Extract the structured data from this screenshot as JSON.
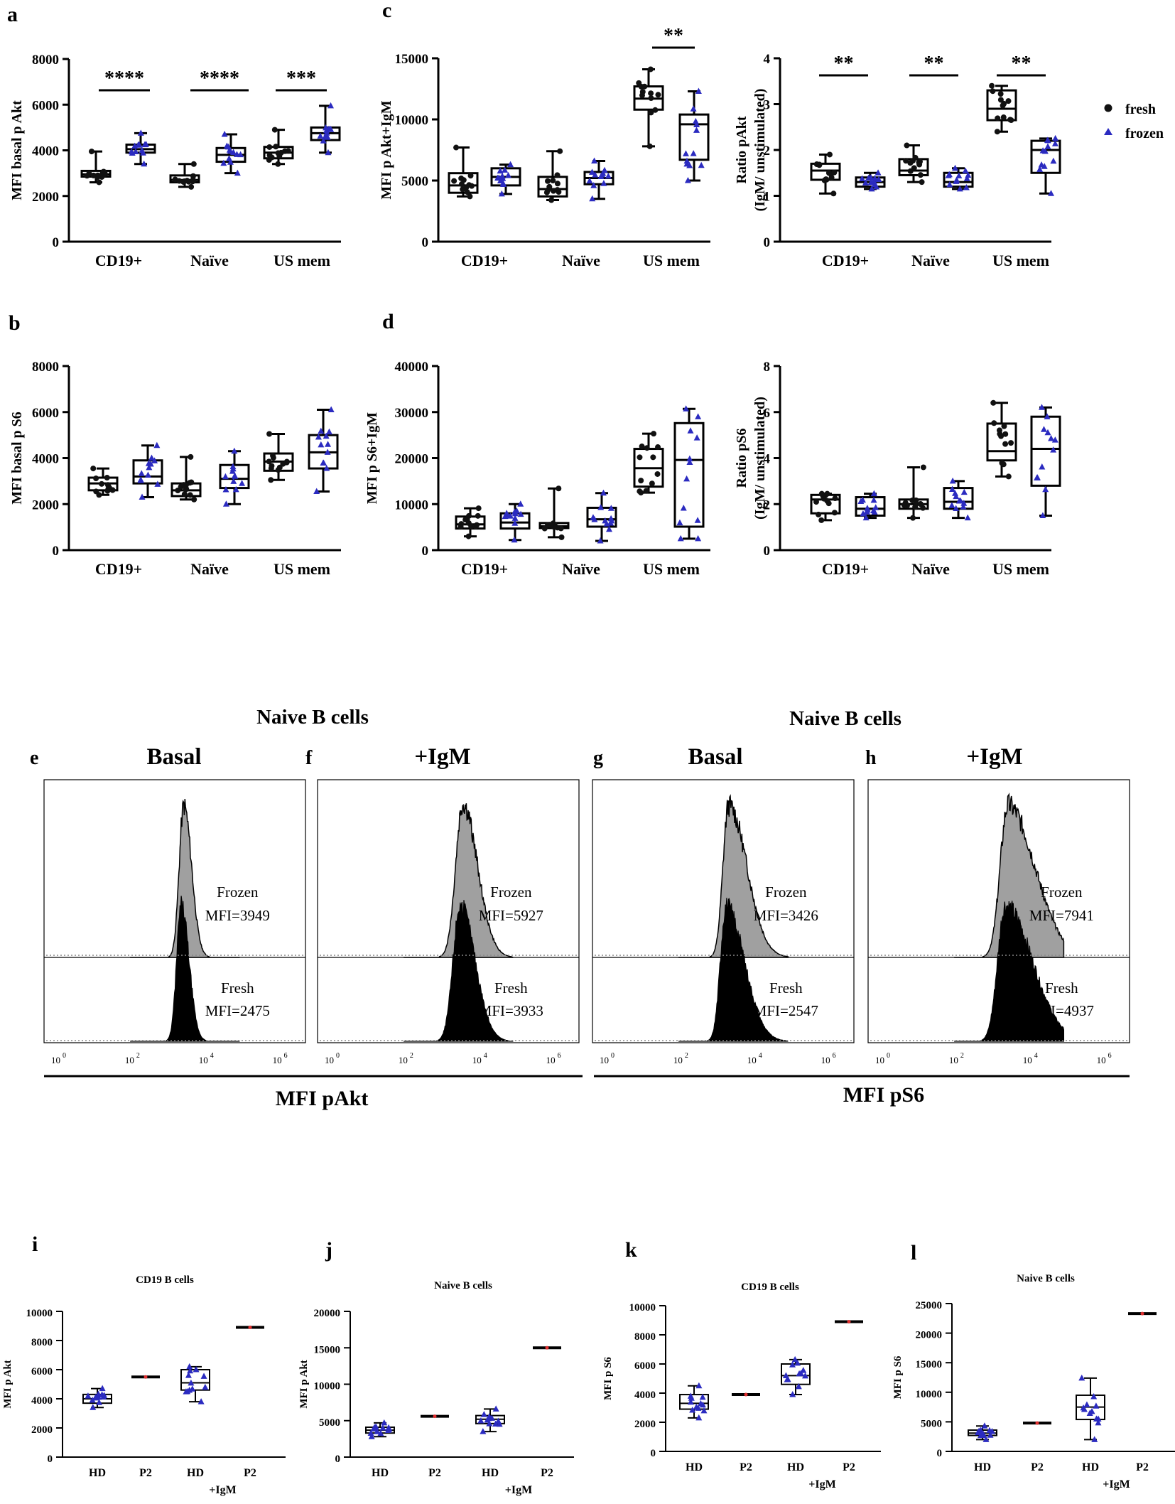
{
  "colors": {
    "fresh": "#111111",
    "frozen": "#2b2bc0",
    "p2_line": "#e03030",
    "hist_gray": "#a0a0a0"
  },
  "legend": {
    "fresh": "fresh",
    "frozen": "frozen"
  },
  "top_groups": [
    "CD19+",
    "Naïve",
    "US mem"
  ],
  "bottom_groups": [
    "HD",
    "P2",
    "HD",
    "P2"
  ],
  "igm_label": "+IgM",
  "chart_data": [
    {
      "id": "a",
      "type": "box",
      "ylabel": "MFI basal p Akt",
      "ylim": [
        0,
        8000
      ],
      "yticks": [
        0,
        2000,
        4000,
        6000,
        8000
      ],
      "categories": [
        "CD19+",
        "Naïve",
        "US mem"
      ],
      "boxes": [
        {
          "series": "fresh",
          "min": 2600,
          "q1": 2850,
          "median": 2950,
          "q3": 3100,
          "max": 3950
        },
        {
          "series": "frozen",
          "min": 3400,
          "q1": 3900,
          "median": 4050,
          "q3": 4250,
          "max": 4750
        },
        {
          "series": "fresh",
          "min": 2400,
          "q1": 2600,
          "median": 2700,
          "q3": 2900,
          "max": 3400
        },
        {
          "series": "frozen",
          "min": 3000,
          "q1": 3500,
          "median": 3800,
          "q3": 4100,
          "max": 4700
        },
        {
          "series": "fresh",
          "min": 3400,
          "q1": 3650,
          "median": 3900,
          "q3": 4150,
          "max": 4900
        },
        {
          "series": "frozen",
          "min": 3900,
          "q1": 4450,
          "median": 4750,
          "q3": 5000,
          "max": 5950
        }
      ],
      "significance": [
        "****",
        "****",
        "***"
      ]
    },
    {
      "id": "b",
      "type": "box",
      "ylabel": "MFI basal p S6",
      "ylim": [
        0,
        8000
      ],
      "yticks": [
        0,
        2000,
        4000,
        6000,
        8000
      ],
      "categories": [
        "CD19+",
        "Naïve",
        "US mem"
      ],
      "boxes": [
        {
          "series": "fresh",
          "min": 2400,
          "q1": 2600,
          "median": 2900,
          "q3": 3150,
          "max": 3550
        },
        {
          "series": "frozen",
          "min": 2300,
          "q1": 2900,
          "median": 3200,
          "q3": 3900,
          "max": 4550
        },
        {
          "series": "fresh",
          "min": 2200,
          "q1": 2350,
          "median": 2600,
          "q3": 2900,
          "max": 4050
        },
        {
          "series": "frozen",
          "min": 2000,
          "q1": 2700,
          "median": 3100,
          "q3": 3700,
          "max": 4300
        },
        {
          "series": "fresh",
          "min": 3050,
          "q1": 3450,
          "median": 3850,
          "q3": 4200,
          "max": 5050
        },
        {
          "series": "frozen",
          "min": 2550,
          "q1": 3550,
          "median": 4250,
          "q3": 5000,
          "max": 6100
        }
      ],
      "significance": []
    },
    {
      "id": "c1",
      "type": "box",
      "ylabel": "MFI p Akt+IgM",
      "ylim": [
        0,
        15000
      ],
      "yticks": [
        0,
        5000,
        10000,
        15000
      ],
      "categories": [
        "CD19+",
        "Naïve",
        "US mem"
      ],
      "boxes": [
        {
          "series": "fresh",
          "min": 3700,
          "q1": 4000,
          "median": 4600,
          "q3": 5600,
          "max": 7700
        },
        {
          "series": "frozen",
          "min": 3900,
          "q1": 4600,
          "median": 5300,
          "q3": 6000,
          "max": 6300
        },
        {
          "series": "fresh",
          "min": 3400,
          "q1": 3700,
          "median": 4300,
          "q3": 5300,
          "max": 7400
        },
        {
          "series": "frozen",
          "min": 3500,
          "q1": 4700,
          "median": 5200,
          "q3": 5700,
          "max": 6600
        },
        {
          "series": "fresh",
          "min": 7800,
          "q1": 10800,
          "median": 11700,
          "q3": 12700,
          "max": 14100
        },
        {
          "series": "frozen",
          "min": 5000,
          "q1": 6700,
          "median": 9600,
          "q3": 10400,
          "max": 12300
        }
      ],
      "significance": [
        "",
        "",
        "**"
      ]
    },
    {
      "id": "c2",
      "type": "box",
      "ylabel_lines": [
        "Ratio pAkt",
        "(IgM/ unstimulated)"
      ],
      "ylim": [
        0,
        4
      ],
      "yticks": [
        0,
        1,
        2,
        3,
        4
      ],
      "categories": [
        "CD19+",
        "Naïve",
        "US mem"
      ],
      "boxes": [
        {
          "series": "fresh",
          "min": 1.05,
          "q1": 1.35,
          "median": 1.55,
          "q3": 1.7,
          "max": 1.9
        },
        {
          "series": "frozen",
          "min": 1.15,
          "q1": 1.2,
          "median": 1.3,
          "q3": 1.4,
          "max": 1.5
        },
        {
          "series": "fresh",
          "min": 1.3,
          "q1": 1.45,
          "median": 1.55,
          "q3": 1.8,
          "max": 2.1
        },
        {
          "series": "frozen",
          "min": 1.15,
          "q1": 1.2,
          "median": 1.3,
          "q3": 1.5,
          "max": 1.6
        },
        {
          "series": "fresh",
          "min": 2.4,
          "q1": 2.65,
          "median": 2.9,
          "q3": 3.3,
          "max": 3.4
        },
        {
          "series": "frozen",
          "min": 1.05,
          "q1": 1.5,
          "median": 2.0,
          "q3": 2.2,
          "max": 2.25
        }
      ],
      "significance": [
        "**",
        "**",
        "**"
      ]
    },
    {
      "id": "d1",
      "type": "box",
      "ylabel": "MFI p S6+IgM",
      "ylim": [
        0,
        40000
      ],
      "yticks": [
        0,
        10000,
        20000,
        30000,
        40000
      ],
      "categories": [
        "CD19+",
        "Naïve",
        "US mem"
      ],
      "boxes": [
        {
          "series": "fresh",
          "min": 3000,
          "q1": 4700,
          "median": 5600,
          "q3": 7300,
          "max": 9100
        },
        {
          "series": "frozen",
          "min": 2200,
          "q1": 4700,
          "median": 6000,
          "q3": 8000,
          "max": 10000
        },
        {
          "series": "fresh",
          "min": 2800,
          "q1": 4800,
          "median": 5200,
          "q3": 5900,
          "max": 13400
        },
        {
          "series": "frozen",
          "min": 2000,
          "q1": 5100,
          "median": 6700,
          "q3": 9200,
          "max": 12400
        },
        {
          "series": "fresh",
          "min": 12500,
          "q1": 13800,
          "median": 17800,
          "q3": 22000,
          "max": 25300
        },
        {
          "series": "frozen",
          "min": 2500,
          "q1": 5100,
          "median": 19600,
          "q3": 27600,
          "max": 30700
        }
      ],
      "significance": []
    },
    {
      "id": "d2",
      "type": "box",
      "ylabel_lines": [
        "Ratio pS6",
        "(IgM/ unstimulated)"
      ],
      "ylim": [
        0,
        8
      ],
      "yticks": [
        0,
        2,
        4,
        6,
        8
      ],
      "categories": [
        "CD19+",
        "Naïve",
        "US mem"
      ],
      "boxes": [
        {
          "series": "fresh",
          "min": 1.3,
          "q1": 1.6,
          "median": 2.2,
          "q3": 2.4,
          "max": 2.45
        },
        {
          "series": "frozen",
          "min": 1.4,
          "q1": 1.5,
          "median": 1.8,
          "q3": 2.3,
          "max": 2.45
        },
        {
          "series": "fresh",
          "min": 1.4,
          "q1": 1.8,
          "median": 2.0,
          "q3": 2.2,
          "max": 3.6
        },
        {
          "series": "frozen",
          "min": 1.4,
          "q1": 1.8,
          "median": 2.1,
          "q3": 2.7,
          "max": 3.0
        },
        {
          "series": "fresh",
          "min": 3.2,
          "q1": 3.9,
          "median": 4.3,
          "q3": 5.5,
          "max": 6.4
        },
        {
          "series": "frozen",
          "min": 1.5,
          "q1": 2.8,
          "median": 4.4,
          "q3": 5.8,
          "max": 6.2
        }
      ],
      "significance": []
    },
    {
      "id": "e",
      "type": "histogram",
      "title": "Basal",
      "panel_letter": "e",
      "frozen_label": "Frozen",
      "frozen_mfi": "MFI=3949",
      "fresh_label": "Fresh",
      "fresh_mfi": "MFI=2475",
      "peak_log": 3.6,
      "width": 0.18,
      "skew": 0.2
    },
    {
      "id": "f",
      "type": "histogram",
      "title": "+IgM",
      "panel_letter": "f",
      "frozen_label": "Frozen",
      "frozen_mfi": "MFI=5927",
      "fresh_label": "Fresh",
      "fresh_mfi": "MFI=3933",
      "peak_log": 3.75,
      "width": 0.28,
      "skew": 0.5
    },
    {
      "id": "g",
      "type": "histogram",
      "title": "Basal",
      "panel_letter": "g",
      "frozen_label": "Frozen",
      "frozen_mfi": "MFI=3426",
      "fresh_label": "Fresh",
      "fresh_mfi": "MFI=2547",
      "peak_log": 3.5,
      "width": 0.22,
      "skew": 1.4
    },
    {
      "id": "h",
      "type": "histogram",
      "title": "+IgM",
      "panel_letter": "h",
      "frozen_label": "Frozen",
      "frozen_mfi": "MFI=7941",
      "fresh_label": "Fresh",
      "fresh_mfi": "MFI=4937",
      "peak_log": 3.6,
      "width": 0.3,
      "skew": 1.6
    },
    {
      "id": "i",
      "type": "box",
      "title": "CD19 B cells",
      "ylabel": "MFI p Akt",
      "ylim": [
        0,
        10000
      ],
      "yticks": [
        0,
        2000,
        4000,
        6000,
        8000,
        10000
      ],
      "categories": [
        "HD",
        "P2",
        "HD",
        "P2"
      ],
      "boxes": [
        {
          "series": "hd",
          "min": 3400,
          "q1": 3700,
          "median": 4000,
          "q3": 4300,
          "max": 4700
        },
        {
          "series": "p2",
          "value": 5500
        },
        {
          "series": "hd",
          "min": 3800,
          "q1": 4600,
          "median": 5100,
          "q3": 6000,
          "max": 6200
        },
        {
          "series": "p2",
          "value": 8900
        }
      ]
    },
    {
      "id": "j",
      "type": "box",
      "title": "Naive B cells",
      "ylabel": "MFI p Akt",
      "ylim": [
        0,
        20000
      ],
      "yticks": [
        0,
        5000,
        10000,
        15000,
        20000
      ],
      "categories": [
        "HD",
        "P2",
        "HD",
        "P2"
      ],
      "boxes": [
        {
          "series": "hd",
          "min": 2800,
          "q1": 3300,
          "median": 3700,
          "q3": 4100,
          "max": 4700
        },
        {
          "series": "p2",
          "value": 5600
        },
        {
          "series": "hd",
          "min": 3500,
          "q1": 4600,
          "median": 5200,
          "q3": 5700,
          "max": 6600
        },
        {
          "series": "p2",
          "value": 15000
        }
      ]
    },
    {
      "id": "k",
      "type": "box",
      "title": "CD19 B cells",
      "ylabel": "MFI p S6",
      "ylim": [
        0,
        10000
      ],
      "yticks": [
        0,
        2000,
        4000,
        6000,
        8000,
        10000
      ],
      "categories": [
        "HD",
        "P2",
        "HD",
        "P2"
      ],
      "boxes": [
        {
          "series": "hd",
          "min": 2300,
          "q1": 2900,
          "median": 3300,
          "q3": 3900,
          "max": 4500
        },
        {
          "series": "p2",
          "value": 3900
        },
        {
          "series": "hd",
          "min": 3900,
          "q1": 4600,
          "median": 5200,
          "q3": 6000,
          "max": 6300
        },
        {
          "series": "p2",
          "value": 8900
        }
      ]
    },
    {
      "id": "l",
      "type": "box",
      "title": "Naive B cells",
      "ylabel": "MFI p S6",
      "ylim": [
        0,
        25000
      ],
      "yticks": [
        0,
        5000,
        10000,
        15000,
        20000,
        25000
      ],
      "categories": [
        "HD",
        "P2",
        "HD",
        "P2"
      ],
      "boxes": [
        {
          "series": "hd",
          "min": 2000,
          "q1": 2700,
          "median": 3100,
          "q3": 3600,
          "max": 4300
        },
        {
          "series": "p2",
          "value": 4800
        },
        {
          "series": "hd",
          "min": 2000,
          "q1": 5400,
          "median": 7500,
          "q3": 9500,
          "max": 12400
        },
        {
          "series": "p2",
          "value": 23300
        }
      ]
    }
  ],
  "panel_letters": {
    "a": "a",
    "b": "b",
    "c": "c",
    "d": "d",
    "i": "i",
    "j": "j",
    "k": "k",
    "l": "l"
  },
  "histogram_headers": {
    "left": "Naive B cells",
    "right": "Naive B cells"
  },
  "histogram_axis": {
    "ticks": [
      "10",
      "10",
      "10",
      "10"
    ],
    "exponents": [
      "0",
      "2",
      "4",
      "6"
    ]
  },
  "histogram_xlabels": {
    "left": "MFI pAkt",
    "right": "MFI pS6"
  }
}
